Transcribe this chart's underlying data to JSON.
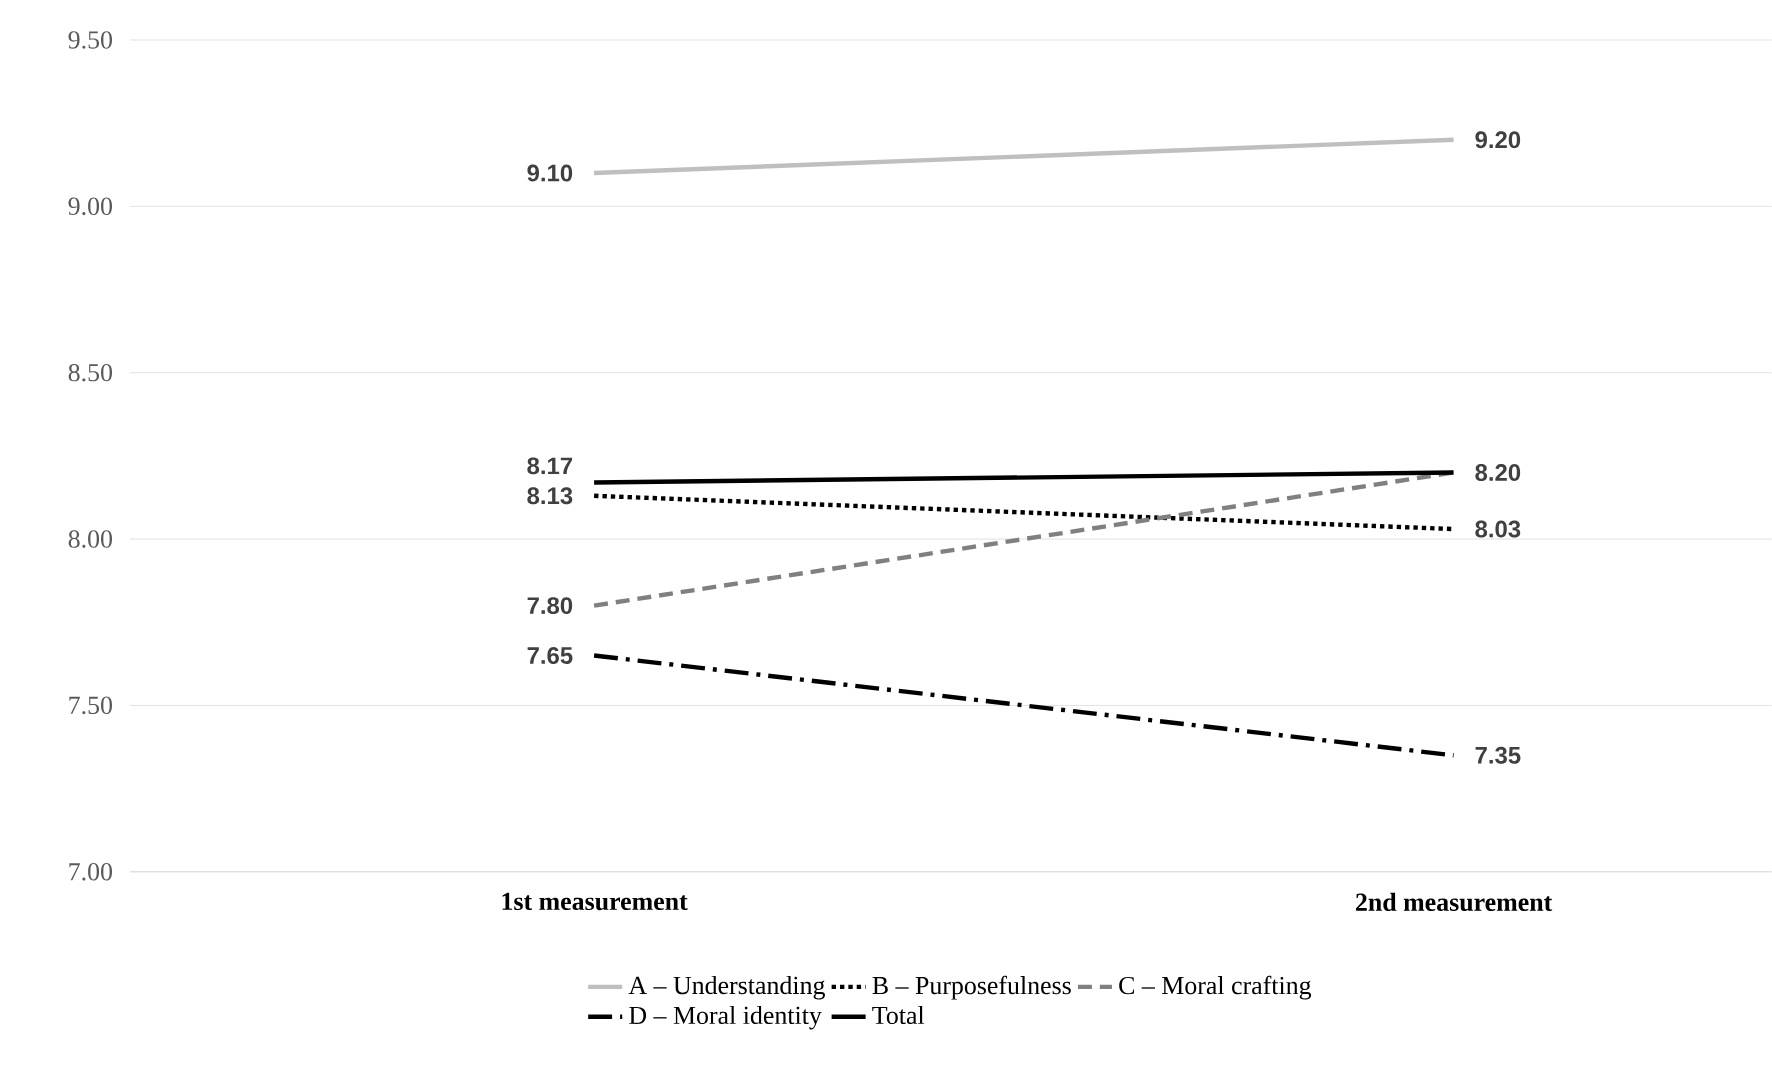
{
  "chart_data": {
    "type": "line",
    "categories": [
      "1st measurement",
      "2nd measurement"
    ],
    "series": [
      {
        "name": "A – Understanding",
        "color": "#bfbfbf",
        "line_style": "solid",
        "values": [
          9.1,
          9.2
        ],
        "value_labels": [
          "9.10",
          "9.20"
        ]
      },
      {
        "name": "B – Purposefulness",
        "color": "#000000",
        "line_style": "dotted",
        "values": [
          8.13,
          8.03
        ],
        "value_labels": [
          "8.13",
          "8.03"
        ]
      },
      {
        "name": "C – Moral crafting",
        "color": "#808080",
        "line_style": "dashed",
        "values": [
          7.8,
          8.2
        ],
        "value_labels": [
          "7.80",
          null
        ]
      },
      {
        "name": "D – Moral identity",
        "color": "#000000",
        "line_style": "dashdot",
        "values": [
          7.65,
          7.35
        ],
        "value_labels": [
          "7.65",
          "7.35"
        ]
      },
      {
        "name": "Total",
        "color": "#000000",
        "line_style": "solid",
        "values": [
          8.17,
          8.2
        ],
        "value_labels": [
          "8.17",
          "8.20"
        ]
      }
    ],
    "ylim": [
      7.0,
      9.5
    ],
    "yticks": [
      {
        "value": 7.0,
        "label": "7.00"
      },
      {
        "value": 7.5,
        "label": "7.50"
      },
      {
        "value": 8.0,
        "label": "8.00"
      },
      {
        "value": 8.5,
        "label": "8.50"
      },
      {
        "value": 9.0,
        "label": "9.00"
      },
      {
        "value": 9.5,
        "label": "9.50"
      }
    ],
    "grid": "y",
    "legend": "bottom"
  }
}
